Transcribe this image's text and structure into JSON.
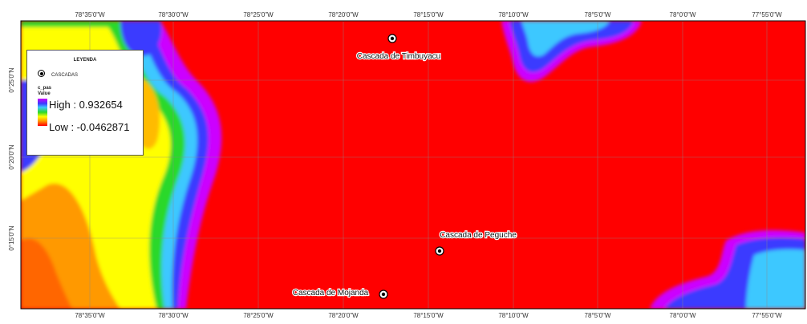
{
  "map": {
    "top_ticks": [
      "78°35'0\"W",
      "78°30'0\"W",
      "78°25'0\"W",
      "78°20'0\"W",
      "78°15'0\"W",
      "78°10'0\"W",
      "78°5'0\"W",
      "78°0'0\"W",
      "77°55'0\"W"
    ],
    "bottom_ticks": [
      "78°35'0\"W",
      "78°30'0\"W",
      "78°25'0\"W",
      "78°20'0\"W",
      "78°15'0\"W",
      "78°10'0\"W",
      "78°5'0\"W",
      "78°0'0\"W",
      "77°55'0\"W"
    ],
    "left_ticks": [
      "0°25'0\"N",
      "0°20'0\"N",
      "0°15'0\"N"
    ],
    "places": {
      "timbuyacu": "Cascada de Timbuyacu",
      "peguche": "Cascada de Peguche",
      "mojanda": "Cascada de Mojanda"
    },
    "colors": {
      "background": "#ff0000",
      "ramp": [
        "#cc00ff",
        "#3a3aff",
        "#3cc8ff",
        "#2cd82c",
        "#ffff00",
        "#ff9900",
        "#ff0000"
      ]
    }
  },
  "legend": {
    "title": "LEYENDA",
    "symbol_label": "CASCADAS",
    "field": "c_pas",
    "value_label": "Value",
    "high": "High : 0.932654",
    "low": "Low : -0.0462871"
  }
}
